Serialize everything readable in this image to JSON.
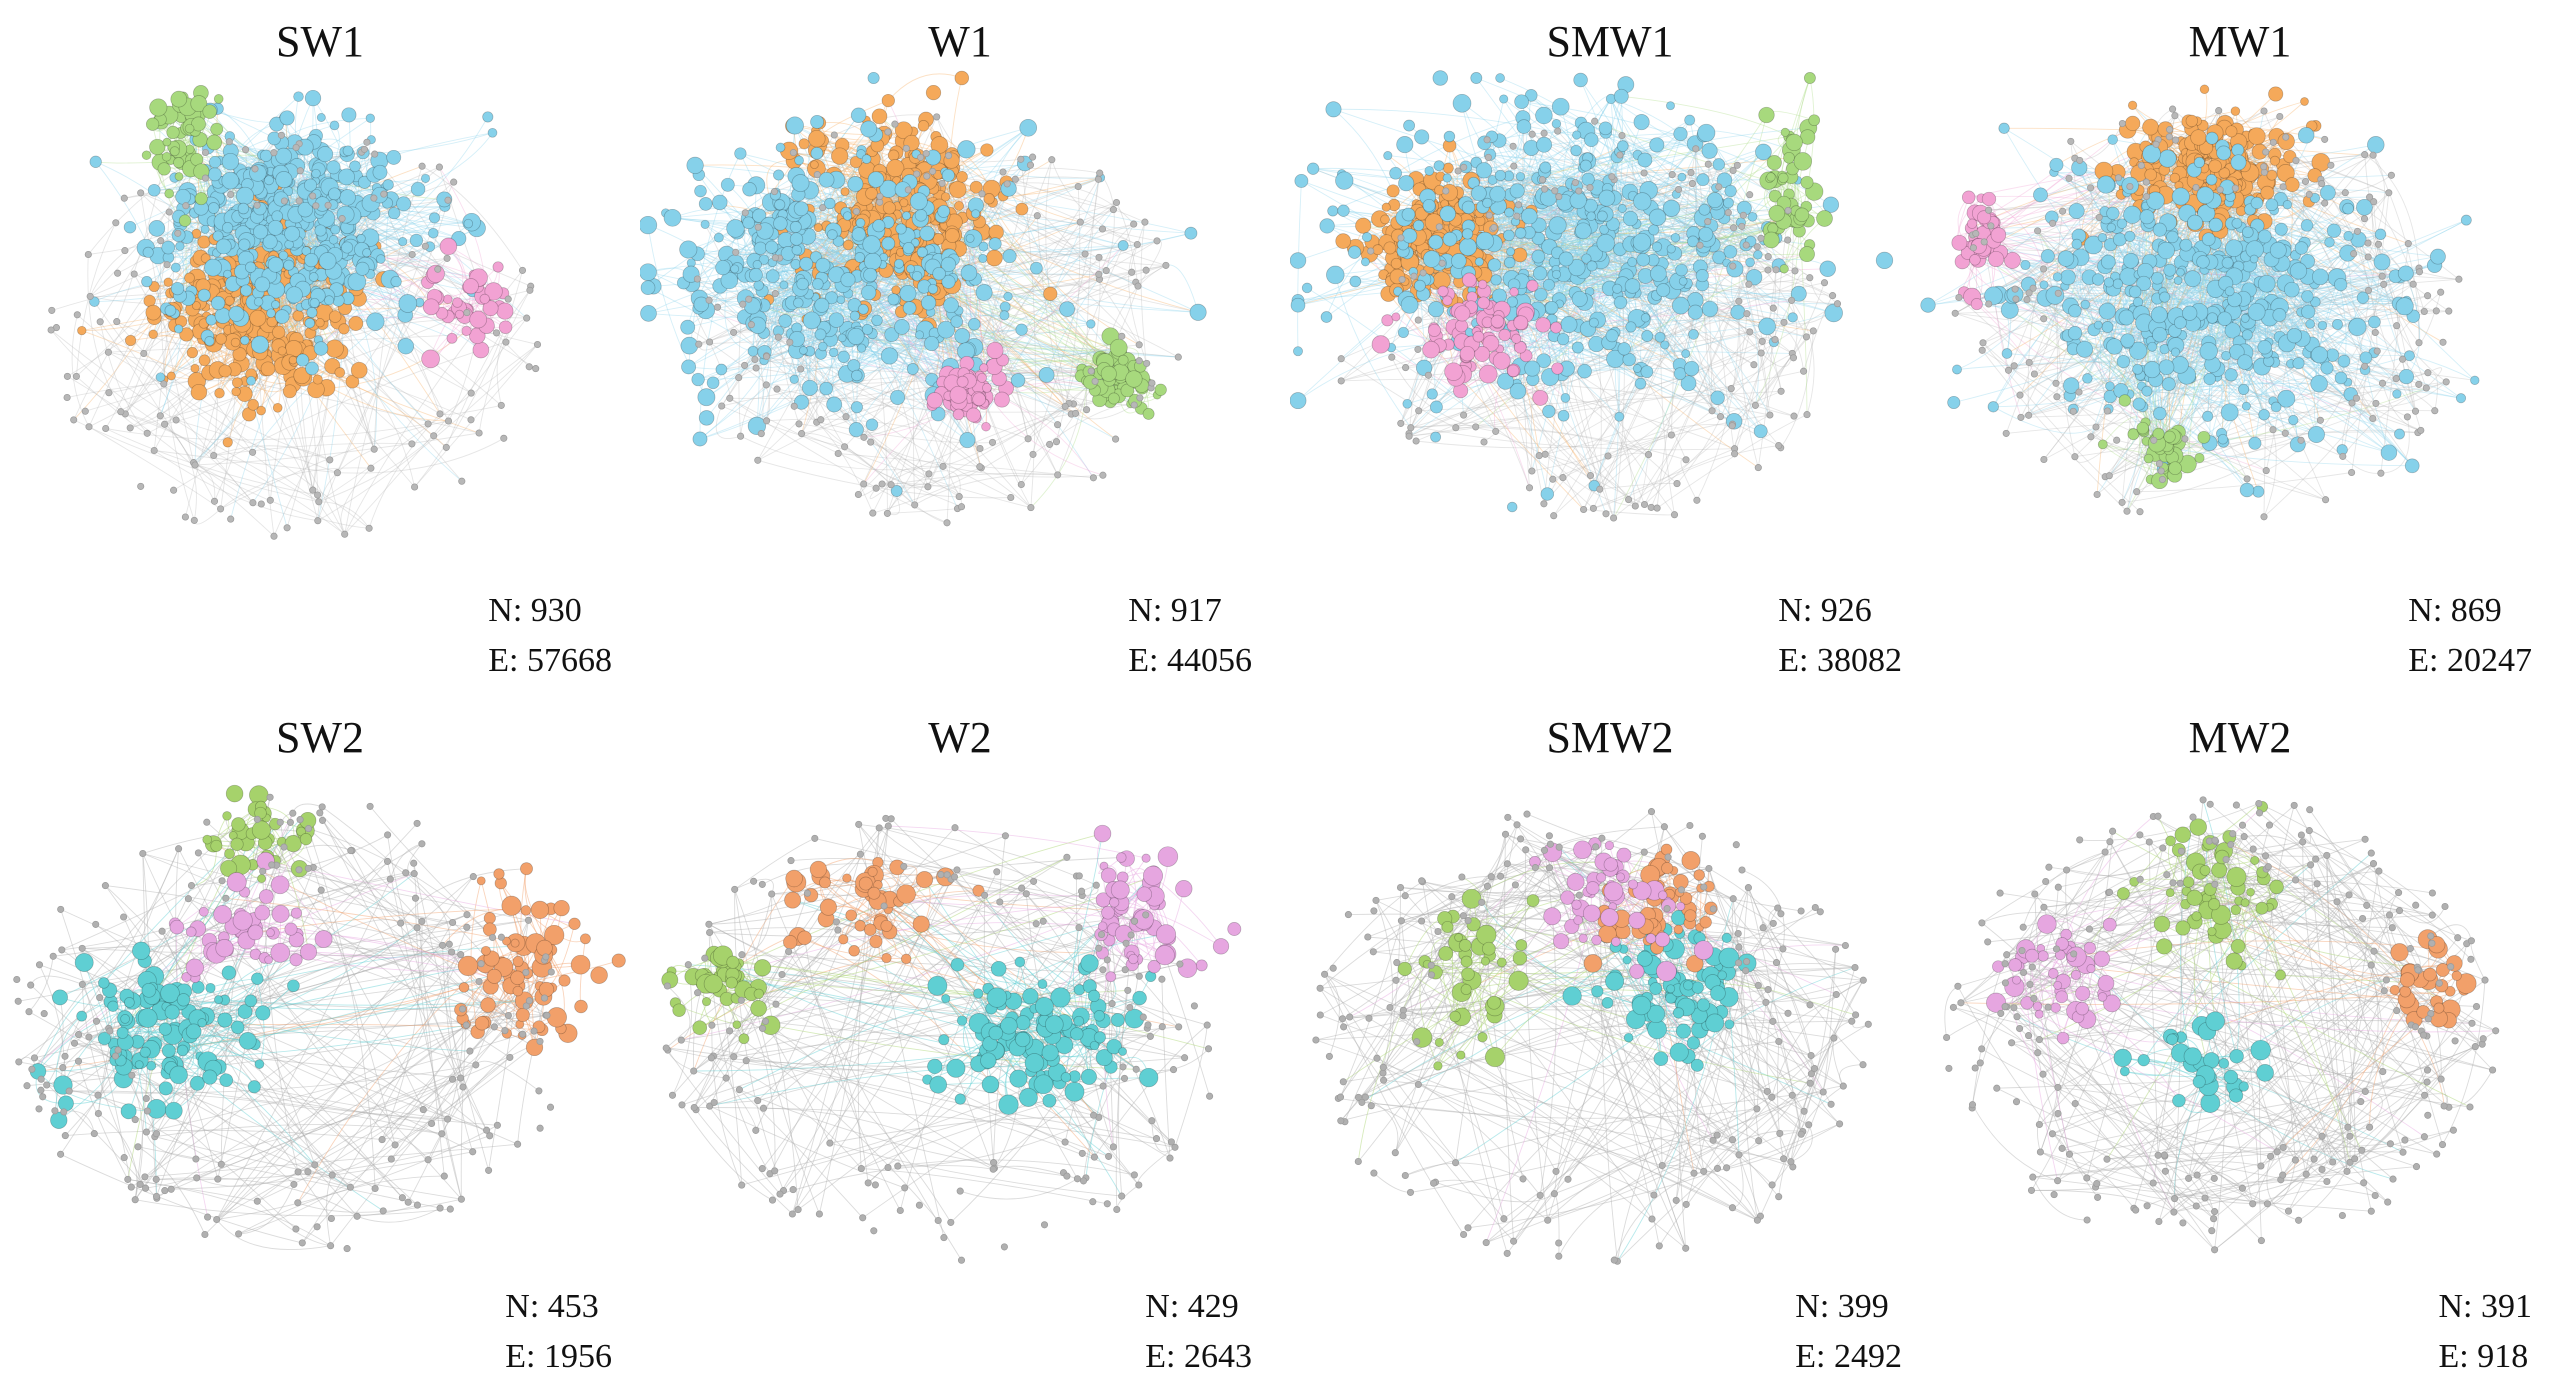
{
  "figure": {
    "panels": [
      {
        "id": "SW1",
        "title": "SW1",
        "n_label": "N: 930",
        "e_label": "E: 57668",
        "edge_level": "dense",
        "clusters": [
          {
            "color": "#f5a95a",
            "nodes": 260
          },
          {
            "color": "#86d1ea",
            "nodes": 420
          },
          {
            "color": "#a7d97d",
            "nodes": 50
          },
          {
            "color": "#f2a2d3",
            "nodes": 40
          },
          {
            "color": "#b7b7b7",
            "nodes": 120
          }
        ]
      },
      {
        "id": "W1",
        "title": "W1",
        "n_label": "N: 917",
        "e_label": "E: 44056",
        "edge_level": "dense",
        "clusters": [
          {
            "color": "#f5a95a",
            "nodes": 260
          },
          {
            "color": "#86d1ea",
            "nodes": 360
          },
          {
            "color": "#a7d97d",
            "nodes": 60
          },
          {
            "color": "#f2a2d3",
            "nodes": 60
          },
          {
            "color": "#b7b7b7",
            "nodes": 140
          }
        ]
      },
      {
        "id": "SMW1",
        "title": "SMW1",
        "n_label": "N: 926",
        "e_label": "E: 38082",
        "edge_level": "dense",
        "clusters": [
          {
            "color": "#f5a95a",
            "nodes": 200
          },
          {
            "color": "#86d1ea",
            "nodes": 430
          },
          {
            "color": "#a7d97d",
            "nodes": 50
          },
          {
            "color": "#f2a2d3",
            "nodes": 80
          },
          {
            "color": "#b7b7b7",
            "nodes": 140
          }
        ]
      },
      {
        "id": "MW1",
        "title": "MW1",
        "n_label": "N: 869",
        "e_label": "E: 20247",
        "edge_level": "dense",
        "clusters": [
          {
            "color": "#f5a95a",
            "nodes": 200
          },
          {
            "color": "#86d1ea",
            "nodes": 420
          },
          {
            "color": "#a7d97d",
            "nodes": 40
          },
          {
            "color": "#f2a2d3",
            "nodes": 40
          },
          {
            "color": "#b7b7b7",
            "nodes": 150
          }
        ]
      },
      {
        "id": "SW2",
        "title": "SW2",
        "n_label": "N: 453",
        "e_label": "E: 1956",
        "edge_level": "sparse",
        "clusters": [
          {
            "color": "#5fcfd3",
            "nodes": 110
          },
          {
            "color": "#f2a06a",
            "nodes": 70
          },
          {
            "color": "#a6d26b",
            "nodes": 35
          },
          {
            "color": "#e6a6e0",
            "nodes": 45
          },
          {
            "color": "#b0b0b0",
            "nodes": 190
          }
        ]
      },
      {
        "id": "W2",
        "title": "W2",
        "n_label": "N: 429",
        "e_label": "E: 2643",
        "edge_level": "sparse",
        "clusters": [
          {
            "color": "#5fcfd3",
            "nodes": 120
          },
          {
            "color": "#f2a06a",
            "nodes": 45
          },
          {
            "color": "#a6d26b",
            "nodes": 45
          },
          {
            "color": "#e6a6e0",
            "nodes": 55
          },
          {
            "color": "#b0b0b0",
            "nodes": 160
          }
        ]
      },
      {
        "id": "SMW2",
        "title": "SMW2",
        "n_label": "N: 399",
        "e_label": "E: 2492",
        "edge_level": "sparse",
        "clusters": [
          {
            "color": "#5fcfd3",
            "nodes": 80
          },
          {
            "color": "#f2a06a",
            "nodes": 50
          },
          {
            "color": "#a6d26b",
            "nodes": 40
          },
          {
            "color": "#e6a6e0",
            "nodes": 50
          },
          {
            "color": "#b0b0b0",
            "nodes": 180
          }
        ]
      },
      {
        "id": "MW2",
        "title": "MW2",
        "n_label": "N: 391",
        "e_label": "E: 918",
        "edge_level": "sparse",
        "clusters": [
          {
            "color": "#a6d26b",
            "nodes": 55
          },
          {
            "color": "#f2a06a",
            "nodes": 30
          },
          {
            "color": "#e6a6e0",
            "nodes": 45
          },
          {
            "color": "#5fcfd3",
            "nodes": 30
          },
          {
            "color": "#b0b0b0",
            "nodes": 230
          }
        ]
      }
    ]
  }
}
